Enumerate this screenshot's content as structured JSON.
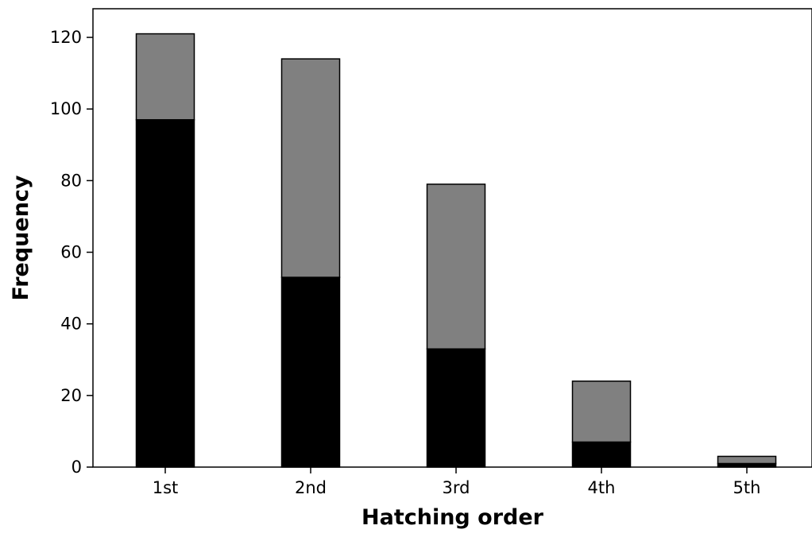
{
  "chart_data": {
    "type": "bar",
    "stacked": true,
    "title": "",
    "xlabel": "Hatching order",
    "ylabel": "Frequency",
    "categories": [
      "1st",
      "2nd",
      "3rd",
      "4th",
      "5th"
    ],
    "ylim": [
      0,
      128
    ],
    "yticks": [
      0,
      20,
      40,
      60,
      80,
      100,
      120
    ],
    "grid": false,
    "legend": "none",
    "series": [
      {
        "values": [
          97,
          53,
          33,
          7,
          1
        ],
        "color": "#000000"
      },
      {
        "values": [
          24,
          61,
          46,
          17,
          2
        ],
        "color": "#808080"
      }
    ]
  }
}
